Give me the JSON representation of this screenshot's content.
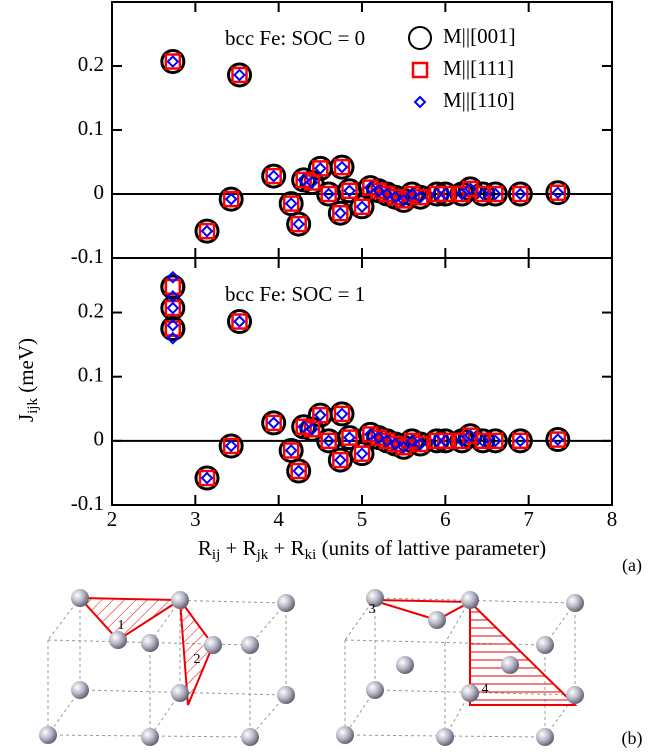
{
  "figure": {
    "ylabel": [
      "J",
      "ijk",
      "  (meV)"
    ],
    "xlabel": [
      "R",
      "ij",
      " + R",
      "jk",
      " + R",
      "ki",
      " (units of lattive parameter)"
    ],
    "panel_labels": [
      "(a)",
      "(b)"
    ],
    "diagram_labels": [
      "1",
      "2",
      "3",
      "4"
    ]
  },
  "chart_data": [
    {
      "type": "scatter",
      "title": "bcc Fe: SOC = 0",
      "legend": "upper right",
      "zero_line": true,
      "xlim": [
        2,
        8
      ],
      "ylim": [
        -0.1,
        0.3
      ],
      "xticks": [
        2,
        3,
        4,
        5,
        6,
        7,
        8
      ],
      "yticks": [
        -0.1,
        0,
        0.1,
        0.2
      ],
      "x": [
        2.73,
        3.14,
        3.43,
        3.53,
        3.94,
        4.15,
        4.24,
        4.3,
        4.4,
        4.5,
        4.6,
        4.74,
        4.76,
        4.85,
        5.0,
        5.1,
        5.2,
        5.3,
        5.4,
        5.5,
        5.6,
        5.7,
        5.9,
        6.0,
        6.2,
        6.3,
        6.45,
        6.6,
        6.9,
        7.35
      ],
      "series": [
        {
          "name": "M||[001]",
          "color": "#000000",
          "marker": "circle",
          "values": [
            0.207,
            -0.058,
            -0.008,
            0.186,
            0.028,
            -0.015,
            -0.047,
            0.022,
            0.018,
            0.04,
            0.0,
            -0.03,
            0.042,
            0.005,
            -0.02,
            0.01,
            0.005,
            0.0,
            -0.005,
            -0.01,
            0.0,
            -0.005,
            0.0,
            0.0,
            0.0,
            0.008,
            0.0,
            0.0,
            0.0,
            0.002
          ]
        },
        {
          "name": "M||[111]",
          "color": "#ff0000",
          "marker": "square",
          "values": [
            0.207,
            -0.058,
            -0.008,
            0.186,
            0.028,
            -0.015,
            -0.047,
            0.022,
            0.018,
            0.04,
            0.0,
            -0.03,
            0.042,
            0.005,
            -0.02,
            0.01,
            0.005,
            0.0,
            -0.005,
            -0.01,
            0.0,
            -0.005,
            0.0,
            0.0,
            0.0,
            0.008,
            0.0,
            0.0,
            0.0,
            0.002
          ]
        },
        {
          "name": "M||[110]",
          "color": "#0000ff",
          "marker": "diamond",
          "values": [
            0.207,
            -0.058,
            -0.008,
            0.186,
            0.028,
            -0.015,
            -0.047,
            0.022,
            0.018,
            0.04,
            0.0,
            -0.03,
            0.042,
            0.005,
            -0.02,
            0.01,
            0.005,
            0.0,
            -0.005,
            -0.01,
            0.0,
            -0.005,
            0.0,
            0.0,
            0.0,
            0.008,
            0.0,
            0.0,
            0.0,
            0.002
          ]
        }
      ]
    },
    {
      "type": "scatter",
      "title": "bcc Fe: SOC = 1",
      "zero_line": true,
      "xlim": [
        2,
        8
      ],
      "ylim": [
        -0.1,
        0.285
      ],
      "xticks": [
        2,
        3,
        4,
        5,
        6,
        7,
        8
      ],
      "yticks": [
        -0.1,
        0,
        0.1,
        0.2
      ],
      "x": [
        2.73,
        2.73,
        2.73,
        2.73,
        2.73,
        3.14,
        3.43,
        3.53,
        3.94,
        4.15,
        4.24,
        4.3,
        4.4,
        4.5,
        4.6,
        4.74,
        4.76,
        4.85,
        5.0,
        5.1,
        5.2,
        5.3,
        5.4,
        5.5,
        5.6,
        5.7,
        5.9,
        6.0,
        6.2,
        6.3,
        6.45,
        6.6,
        6.9,
        7.35
      ],
      "series": [
        {
          "color": "#000000",
          "marker": "circle",
          "values": [
            0.24,
            0.207,
            0.175,
            0.24,
            0.175,
            -0.058,
            -0.008,
            0.186,
            0.028,
            -0.015,
            -0.047,
            0.022,
            0.018,
            0.04,
            0.0,
            -0.03,
            0.042,
            0.005,
            -0.02,
            0.01,
            0.005,
            0.0,
            -0.005,
            -0.01,
            0.0,
            -0.005,
            0.0,
            0.0,
            0.0,
            0.008,
            0.0,
            0.0,
            0.0,
            0.002
          ]
        },
        {
          "color": "#ff0000",
          "marker": "square",
          "values": [
            0.24,
            0.207,
            0.175,
            0.24,
            0.175,
            -0.058,
            -0.008,
            0.186,
            0.028,
            -0.015,
            -0.047,
            0.022,
            0.018,
            0.04,
            0.0,
            -0.03,
            0.042,
            0.005,
            -0.02,
            0.01,
            0.005,
            0.0,
            -0.005,
            -0.01,
            0.0,
            -0.005,
            0.0,
            0.0,
            0.0,
            0.008,
            0.0,
            0.0,
            0.0,
            0.002
          ]
        },
        {
          "color": "#0000ff",
          "marker": "diamond",
          "values": [
            0.255,
            0.207,
            0.16,
            0.225,
            0.18,
            -0.058,
            -0.008,
            0.186,
            0.028,
            -0.015,
            -0.047,
            0.022,
            0.018,
            0.04,
            0.0,
            -0.03,
            0.042,
            0.005,
            -0.02,
            0.01,
            0.005,
            0.0,
            -0.005,
            -0.01,
            0.0,
            -0.005,
            0.0,
            0.0,
            0.0,
            0.008,
            0.0,
            0.0,
            0.0,
            0.002
          ]
        }
      ]
    }
  ]
}
